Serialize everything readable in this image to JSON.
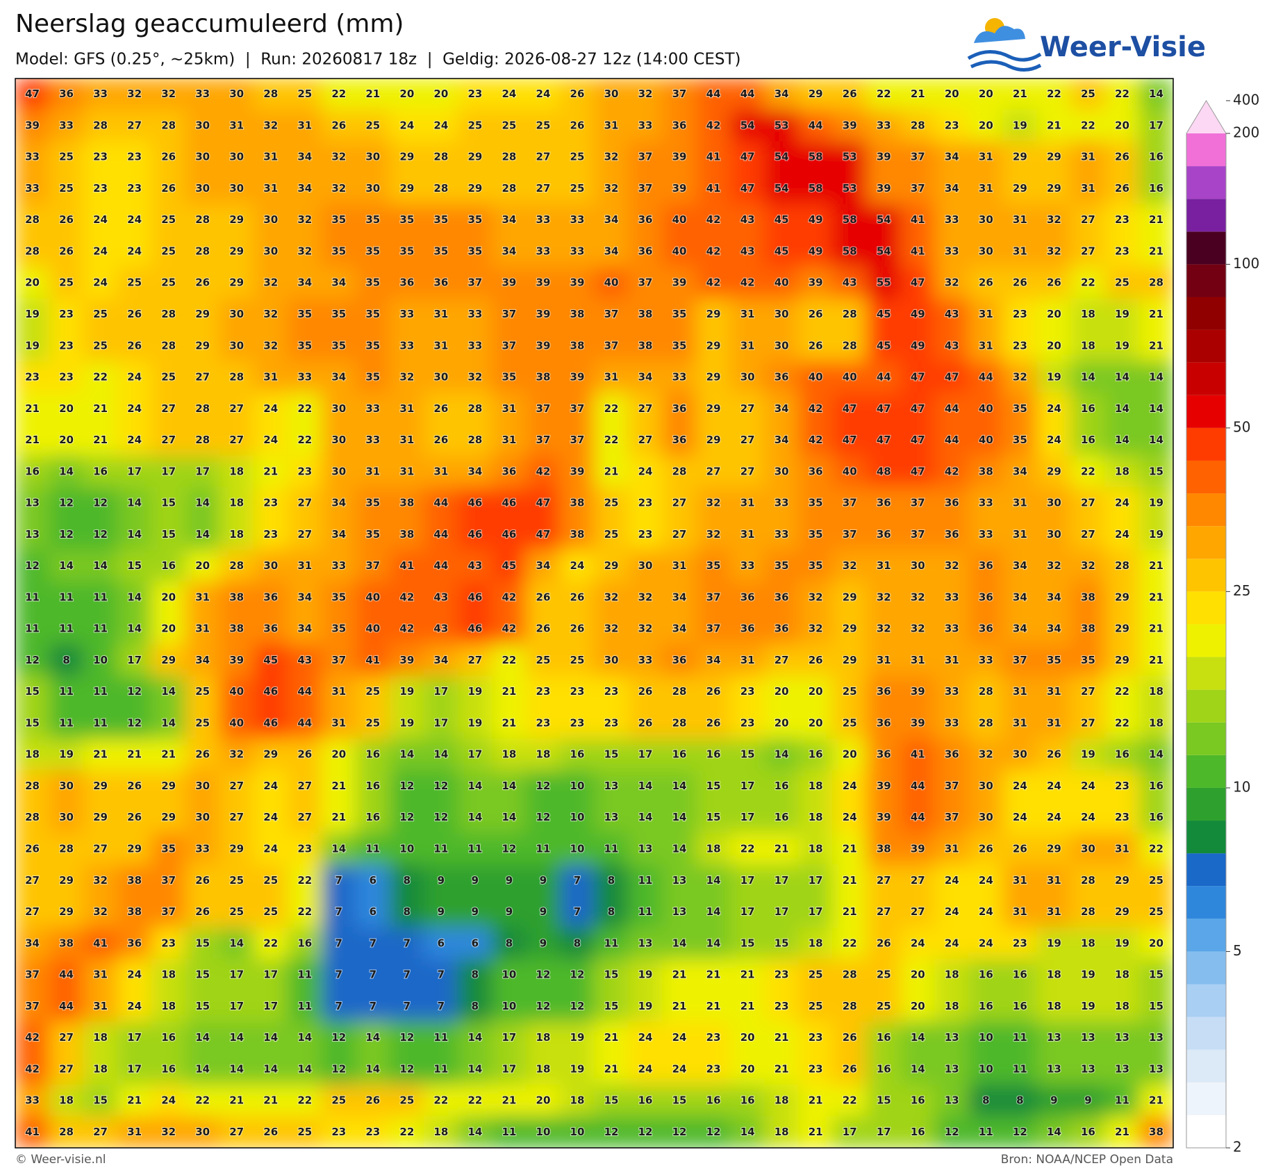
{
  "header": {
    "title": "Neerslag geaccumuleerd (mm)",
    "subtitle": "Model: GFS (0.25°, ~25km)  |  Run: 20260817 18z  |  Geldig: 2026-08-27 12z (14:00 CEST)",
    "logo": "Weer-Visie"
  },
  "map": {
    "rows": [
      [
        47,
        36,
        33,
        32,
        32,
        33,
        30,
        28,
        25,
        22,
        21,
        20,
        20,
        23,
        24,
        24,
        26,
        30,
        32,
        37,
        44,
        44,
        34,
        29,
        26,
        22,
        21,
        20,
        20,
        21,
        22,
        25,
        22,
        14
      ],
      [
        39,
        33,
        28,
        27,
        28,
        30,
        31,
        32,
        31,
        26,
        25,
        24,
        24,
        25,
        25,
        25,
        26,
        31,
        33,
        36,
        42,
        54,
        53,
        44,
        39,
        33,
        28,
        23,
        20,
        19,
        21,
        22,
        20,
        17
      ],
      [
        33,
        25,
        23,
        23,
        26,
        30,
        30,
        31,
        34,
        32,
        30,
        29,
        28,
        29,
        28,
        27,
        25,
        32,
        37,
        39,
        41,
        47,
        54,
        58,
        53,
        39,
        37,
        34,
        31,
        29,
        29,
        31,
        26,
        16
      ],
      [
        33,
        25,
        23,
        23,
        26,
        30,
        30,
        31,
        34,
        32,
        30,
        29,
        28,
        29,
        28,
        27,
        25,
        32,
        37,
        39,
        41,
        47,
        54,
        58,
        53,
        39,
        37,
        34,
        31,
        29,
        29,
        31,
        26,
        16
      ],
      [
        28,
        26,
        24,
        24,
        25,
        28,
        29,
        30,
        32,
        35,
        35,
        35,
        35,
        35,
        34,
        33,
        33,
        34,
        36,
        40,
        42,
        43,
        45,
        49,
        58,
        54,
        41,
        33,
        30,
        31,
        32,
        27,
        23,
        21
      ],
      [
        28,
        26,
        24,
        24,
        25,
        28,
        29,
        30,
        32,
        35,
        35,
        35,
        35,
        35,
        34,
        33,
        33,
        34,
        36,
        40,
        42,
        43,
        45,
        49,
        58,
        54,
        41,
        33,
        30,
        31,
        32,
        27,
        23,
        21
      ],
      [
        20,
        25,
        24,
        25,
        25,
        26,
        29,
        32,
        34,
        34,
        35,
        36,
        36,
        37,
        39,
        39,
        39,
        40,
        37,
        39,
        42,
        42,
        40,
        39,
        43,
        55,
        47,
        32,
        26,
        26,
        26,
        22,
        25,
        28
      ],
      [
        19,
        23,
        25,
        26,
        28,
        29,
        30,
        32,
        35,
        35,
        35,
        33,
        31,
        33,
        37,
        39,
        38,
        37,
        38,
        35,
        29,
        31,
        30,
        26,
        28,
        45,
        49,
        43,
        31,
        23,
        20,
        18,
        19,
        21
      ],
      [
        19,
        23,
        25,
        26,
        28,
        29,
        30,
        32,
        35,
        35,
        35,
        33,
        31,
        33,
        37,
        39,
        38,
        37,
        38,
        35,
        29,
        31,
        30,
        26,
        28,
        45,
        49,
        43,
        31,
        23,
        20,
        18,
        19,
        21
      ],
      [
        23,
        23,
        22,
        24,
        25,
        27,
        28,
        31,
        33,
        34,
        35,
        32,
        30,
        32,
        35,
        38,
        39,
        31,
        34,
        33,
        29,
        30,
        36,
        40,
        40,
        44,
        47,
        47,
        44,
        32,
        19,
        14,
        14,
        14
      ],
      [
        21,
        20,
        21,
        24,
        27,
        28,
        27,
        24,
        22,
        30,
        33,
        31,
        26,
        28,
        31,
        37,
        37,
        22,
        27,
        36,
        29,
        27,
        34,
        42,
        47,
        47,
        47,
        44,
        40,
        35,
        24,
        16,
        14,
        14
      ],
      [
        21,
        20,
        21,
        24,
        27,
        28,
        27,
        24,
        22,
        30,
        33,
        31,
        26,
        28,
        31,
        37,
        37,
        22,
        27,
        36,
        29,
        27,
        34,
        42,
        47,
        47,
        47,
        44,
        40,
        35,
        24,
        16,
        14,
        14
      ],
      [
        16,
        14,
        16,
        17,
        17,
        17,
        18,
        21,
        23,
        30,
        31,
        31,
        31,
        34,
        36,
        42,
        39,
        21,
        24,
        28,
        27,
        27,
        30,
        36,
        40,
        48,
        47,
        42,
        38,
        34,
        29,
        22,
        18,
        15
      ],
      [
        13,
        12,
        12,
        14,
        15,
        14,
        18,
        23,
        27,
        34,
        35,
        38,
        44,
        46,
        46,
        47,
        38,
        25,
        23,
        27,
        32,
        31,
        33,
        35,
        37,
        36,
        37,
        36,
        33,
        31,
        30,
        27,
        24,
        19
      ],
      [
        13,
        12,
        12,
        14,
        15,
        14,
        18,
        23,
        27,
        34,
        35,
        38,
        44,
        46,
        46,
        47,
        38,
        25,
        23,
        27,
        32,
        31,
        33,
        35,
        37,
        36,
        37,
        36,
        33,
        31,
        30,
        27,
        24,
        19
      ],
      [
        12,
        14,
        14,
        15,
        16,
        20,
        28,
        30,
        31,
        33,
        37,
        41,
        44,
        43,
        45,
        34,
        24,
        29,
        30,
        31,
        35,
        33,
        35,
        35,
        32,
        31,
        30,
        32,
        36,
        34,
        32,
        32,
        28,
        21
      ],
      [
        11,
        11,
        11,
        14,
        20,
        31,
        38,
        36,
        34,
        35,
        40,
        42,
        43,
        46,
        42,
        26,
        26,
        32,
        32,
        34,
        37,
        36,
        36,
        32,
        29,
        32,
        32,
        33,
        36,
        34,
        34,
        38,
        29,
        21
      ],
      [
        11,
        11,
        11,
        14,
        20,
        31,
        38,
        36,
        34,
        35,
        40,
        42,
        43,
        46,
        42,
        26,
        26,
        32,
        32,
        34,
        37,
        36,
        36,
        32,
        29,
        32,
        32,
        33,
        36,
        34,
        34,
        38,
        29,
        21
      ],
      [
        12,
        8,
        10,
        17,
        29,
        34,
        39,
        45,
        43,
        37,
        41,
        39,
        34,
        27,
        22,
        25,
        25,
        30,
        33,
        36,
        34,
        31,
        27,
        26,
        29,
        31,
        31,
        31,
        33,
        37,
        35,
        35,
        29,
        21
      ],
      [
        15,
        11,
        11,
        12,
        14,
        25,
        40,
        46,
        44,
        31,
        25,
        19,
        17,
        19,
        21,
        23,
        23,
        23,
        26,
        28,
        26,
        23,
        20,
        20,
        25,
        36,
        39,
        33,
        28,
        31,
        31,
        27,
        22,
        18
      ],
      [
        15,
        11,
        11,
        12,
        14,
        25,
        40,
        46,
        44,
        31,
        25,
        19,
        17,
        19,
        21,
        23,
        23,
        23,
        26,
        28,
        26,
        23,
        20,
        20,
        25,
        36,
        39,
        33,
        28,
        31,
        31,
        27,
        22,
        18
      ],
      [
        18,
        19,
        21,
        21,
        21,
        26,
        32,
        29,
        26,
        20,
        16,
        14,
        14,
        17,
        18,
        18,
        16,
        15,
        17,
        16,
        16,
        15,
        14,
        16,
        20,
        36,
        41,
        36,
        32,
        30,
        26,
        19,
        16,
        14
      ],
      [
        28,
        30,
        29,
        26,
        29,
        30,
        27,
        24,
        27,
        21,
        16,
        12,
        12,
        14,
        14,
        12,
        10,
        13,
        14,
        14,
        15,
        17,
        16,
        18,
        24,
        39,
        44,
        37,
        30,
        24,
        24,
        24,
        23,
        16
      ],
      [
        28,
        30,
        29,
        26,
        29,
        30,
        27,
        24,
        27,
        21,
        16,
        12,
        12,
        14,
        14,
        12,
        10,
        13,
        14,
        14,
        15,
        17,
        16,
        18,
        24,
        39,
        44,
        37,
        30,
        24,
        24,
        24,
        23,
        16
      ],
      [
        26,
        28,
        27,
        29,
        35,
        33,
        29,
        24,
        23,
        14,
        11,
        10,
        11,
        11,
        12,
        11,
        10,
        11,
        13,
        14,
        18,
        22,
        21,
        18,
        21,
        38,
        39,
        31,
        26,
        26,
        29,
        30,
        31,
        22
      ],
      [
        27,
        29,
        32,
        38,
        37,
        26,
        25,
        25,
        22,
        7,
        6,
        8,
        9,
        9,
        9,
        9,
        7,
        8,
        11,
        13,
        14,
        17,
        17,
        17,
        21,
        27,
        27,
        24,
        24,
        31,
        31,
        28,
        29,
        25
      ],
      [
        27,
        29,
        32,
        38,
        37,
        26,
        25,
        25,
        22,
        7,
        6,
        8,
        9,
        9,
        9,
        9,
        7,
        8,
        11,
        13,
        14,
        17,
        17,
        17,
        21,
        27,
        27,
        24,
        24,
        31,
        31,
        28,
        29,
        25
      ],
      [
        34,
        38,
        41,
        36,
        23,
        15,
        14,
        22,
        16,
        7,
        7,
        7,
        6,
        6,
        8,
        9,
        8,
        11,
        13,
        14,
        14,
        15,
        15,
        18,
        22,
        26,
        24,
        24,
        24,
        23,
        19,
        18,
        19,
        20
      ],
      [
        37,
        44,
        31,
        24,
        18,
        15,
        17,
        17,
        11,
        7,
        7,
        7,
        7,
        8,
        10,
        12,
        12,
        15,
        19,
        21,
        21,
        21,
        23,
        25,
        28,
        25,
        20,
        18,
        16,
        16,
        18,
        19,
        18,
        15
      ],
      [
        37,
        44,
        31,
        24,
        18,
        15,
        17,
        17,
        11,
        7,
        7,
        7,
        7,
        8,
        10,
        12,
        12,
        15,
        19,
        21,
        21,
        21,
        23,
        25,
        28,
        25,
        20,
        18,
        16,
        16,
        18,
        19,
        18,
        15
      ],
      [
        42,
        27,
        18,
        17,
        16,
        14,
        14,
        14,
        14,
        12,
        14,
        12,
        11,
        14,
        17,
        18,
        19,
        21,
        24,
        24,
        23,
        20,
        21,
        23,
        26,
        16,
        14,
        13,
        10,
        11,
        13,
        13,
        13,
        13
      ],
      [
        42,
        27,
        18,
        17,
        16,
        14,
        14,
        14,
        14,
        12,
        14,
        12,
        11,
        14,
        17,
        18,
        19,
        21,
        24,
        24,
        23,
        20,
        21,
        23,
        26,
        16,
        14,
        13,
        10,
        11,
        13,
        13,
        13,
        13
      ],
      [
        33,
        18,
        15,
        21,
        24,
        22,
        21,
        21,
        22,
        25,
        26,
        25,
        22,
        22,
        21,
        20,
        18,
        15,
        16,
        15,
        16,
        16,
        18,
        21,
        22,
        15,
        16,
        13,
        8,
        8,
        9,
        9,
        11,
        21
      ],
      [
        41,
        28,
        27,
        31,
        32,
        30,
        27,
        26,
        25,
        23,
        23,
        22,
        18,
        14,
        11,
        10,
        10,
        12,
        12,
        12,
        12,
        14,
        18,
        21,
        17,
        17,
        16,
        12,
        11,
        12,
        14,
        16,
        21,
        38
      ]
    ]
  },
  "colorbar": {
    "levels": [
      2,
      2.5,
      3,
      3.5,
      4,
      4.5,
      5,
      6,
      7,
      8,
      9,
      10,
      12.5,
      15,
      17.5,
      20,
      22.5,
      25,
      30,
      35,
      40,
      45,
      50,
      60,
      70,
      80,
      90,
      100,
      125,
      150,
      175,
      200,
      400
    ],
    "colors": [
      "#ffffff",
      "#eef4fb",
      "#dce9f7",
      "#c6ddf5",
      "#a9cff3",
      "#85bdee",
      "#5aa6e8",
      "#2f87dc",
      "#1a68c8",
      "#128a3a",
      "#2ea02e",
      "#4db82a",
      "#7ac822",
      "#a0d418",
      "#c8e010",
      "#eef200",
      "#ffe000",
      "#ffc400",
      "#ffa600",
      "#ff8800",
      "#ff6200",
      "#ff3c00",
      "#e60000",
      "#c80000",
      "#ab0000",
      "#900000",
      "#720012",
      "#4a0020",
      "#7820a0",
      "#a844c8",
      "#f070d8",
      "#fcd8f4"
    ],
    "ticks": [
      2,
      5,
      10,
      25,
      50,
      100,
      200,
      400
    ]
  },
  "footer": {
    "left": "© Weer-visie.nl",
    "right": "Bron: NOAA/NCEP Open Data"
  }
}
